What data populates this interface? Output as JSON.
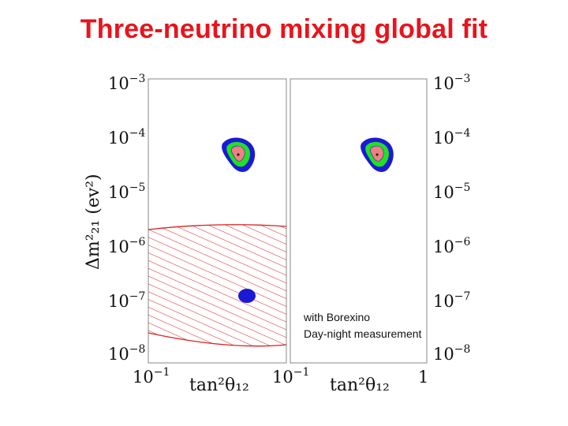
{
  "title": "Three-neutrino mixing global fit",
  "chart_data": [
    {
      "type": "scatter",
      "panel": "left",
      "x_scale": "log",
      "y_scale": "log",
      "xlim": [
        0.08,
        1.2
      ],
      "ylim": [
        1e-08,
        0.001
      ],
      "x_ticks": [
        {
          "value": 0.1,
          "base": "10",
          "exp": "−1"
        }
      ],
      "y_ticks": [
        {
          "value": 0.001,
          "base": "10",
          "exp": "−3"
        },
        {
          "value": 0.0001,
          "base": "10",
          "exp": "−4"
        },
        {
          "value": 1e-05,
          "base": "10",
          "exp": "−5"
        },
        {
          "value": 1e-06,
          "base": "10",
          "exp": "−6"
        },
        {
          "value": 1e-07,
          "base": "10",
          "exp": "−7"
        },
        {
          "value": 1e-08,
          "base": "10",
          "exp": "−8"
        }
      ],
      "xlabel": "tan²θ₁₂",
      "ylabel": "Δm²₂₁ (ev²)",
      "regions": [
        {
          "kind": "contour",
          "x": 0.45,
          "y": 7.5e-05,
          "color_outer": "#1a1ad6",
          "color_mid": "#22e022",
          "color_inner": "#f08080"
        },
        {
          "kind": "blob",
          "x": 0.45,
          "y": 9e-08,
          "color": "#1a1ad6"
        },
        {
          "kind": "hatched-exclusion",
          "y_upper": [
            1.1e-06,
            1.5e-06,
            1.7e-06
          ],
          "y_lower": [
            1.5e-08,
            6e-09,
            8e-09
          ],
          "color": "#d81f1f"
        }
      ]
    },
    {
      "type": "scatter",
      "panel": "right",
      "x_scale": "log",
      "y_scale": "log",
      "xlim": [
        0.08,
        1.2
      ],
      "ylim": [
        1e-08,
        0.001
      ],
      "x_ticks": [
        {
          "value": 0.1,
          "base": "10",
          "exp": "−1"
        },
        {
          "value": 1,
          "base": "1",
          "exp": ""
        }
      ],
      "y_ticks": [
        {
          "value": 0.001,
          "base": "10",
          "exp": "−3"
        },
        {
          "value": 0.0001,
          "base": "10",
          "exp": "−4"
        },
        {
          "value": 1e-05,
          "base": "10",
          "exp": "−5"
        },
        {
          "value": 1e-06,
          "base": "10",
          "exp": "−6"
        },
        {
          "value": 1e-07,
          "base": "10",
          "exp": "−7"
        },
        {
          "value": 1e-08,
          "base": "10",
          "exp": "−8"
        }
      ],
      "xlabel": "tan²θ₁₂",
      "annotations": [
        "with Borexino",
        "Day-night measurement"
      ],
      "regions": [
        {
          "kind": "contour",
          "x": 0.45,
          "y": 7.5e-05,
          "color_outer": "#1a1ad6",
          "color_mid": "#22e022",
          "color_inner": "#f08080"
        }
      ]
    }
  ]
}
